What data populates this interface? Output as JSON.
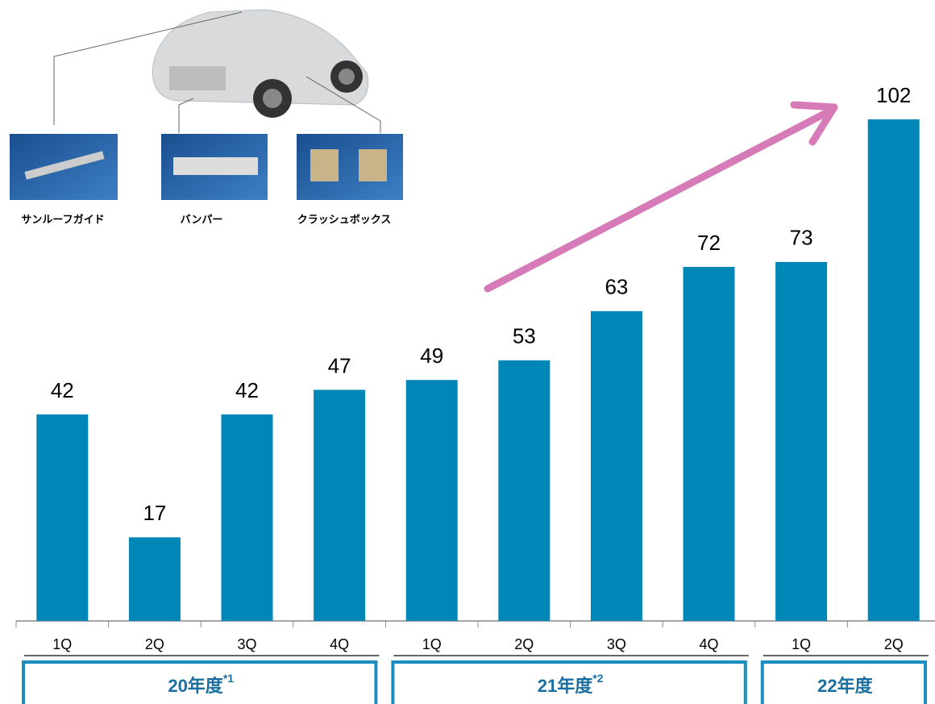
{
  "chart_data": {
    "type": "bar",
    "color": "#0087b8",
    "groups": [
      {
        "label": "20年度",
        "note": "*1",
        "categories": [
          "1Q",
          "2Q",
          "3Q",
          "4Q"
        ]
      },
      {
        "label": "21年度",
        "note": "*2",
        "categories": [
          "1Q",
          "2Q",
          "3Q",
          "4Q"
        ]
      },
      {
        "label": "22年度",
        "categories": [
          "1Q",
          "2Q"
        ]
      }
    ],
    "values": [
      42,
      17,
      42,
      47,
      49,
      53,
      63,
      72,
      73,
      102
    ],
    "products": [
      "サンルーフガイド",
      "バンパー",
      "クラッシュボックス"
    ]
  }
}
